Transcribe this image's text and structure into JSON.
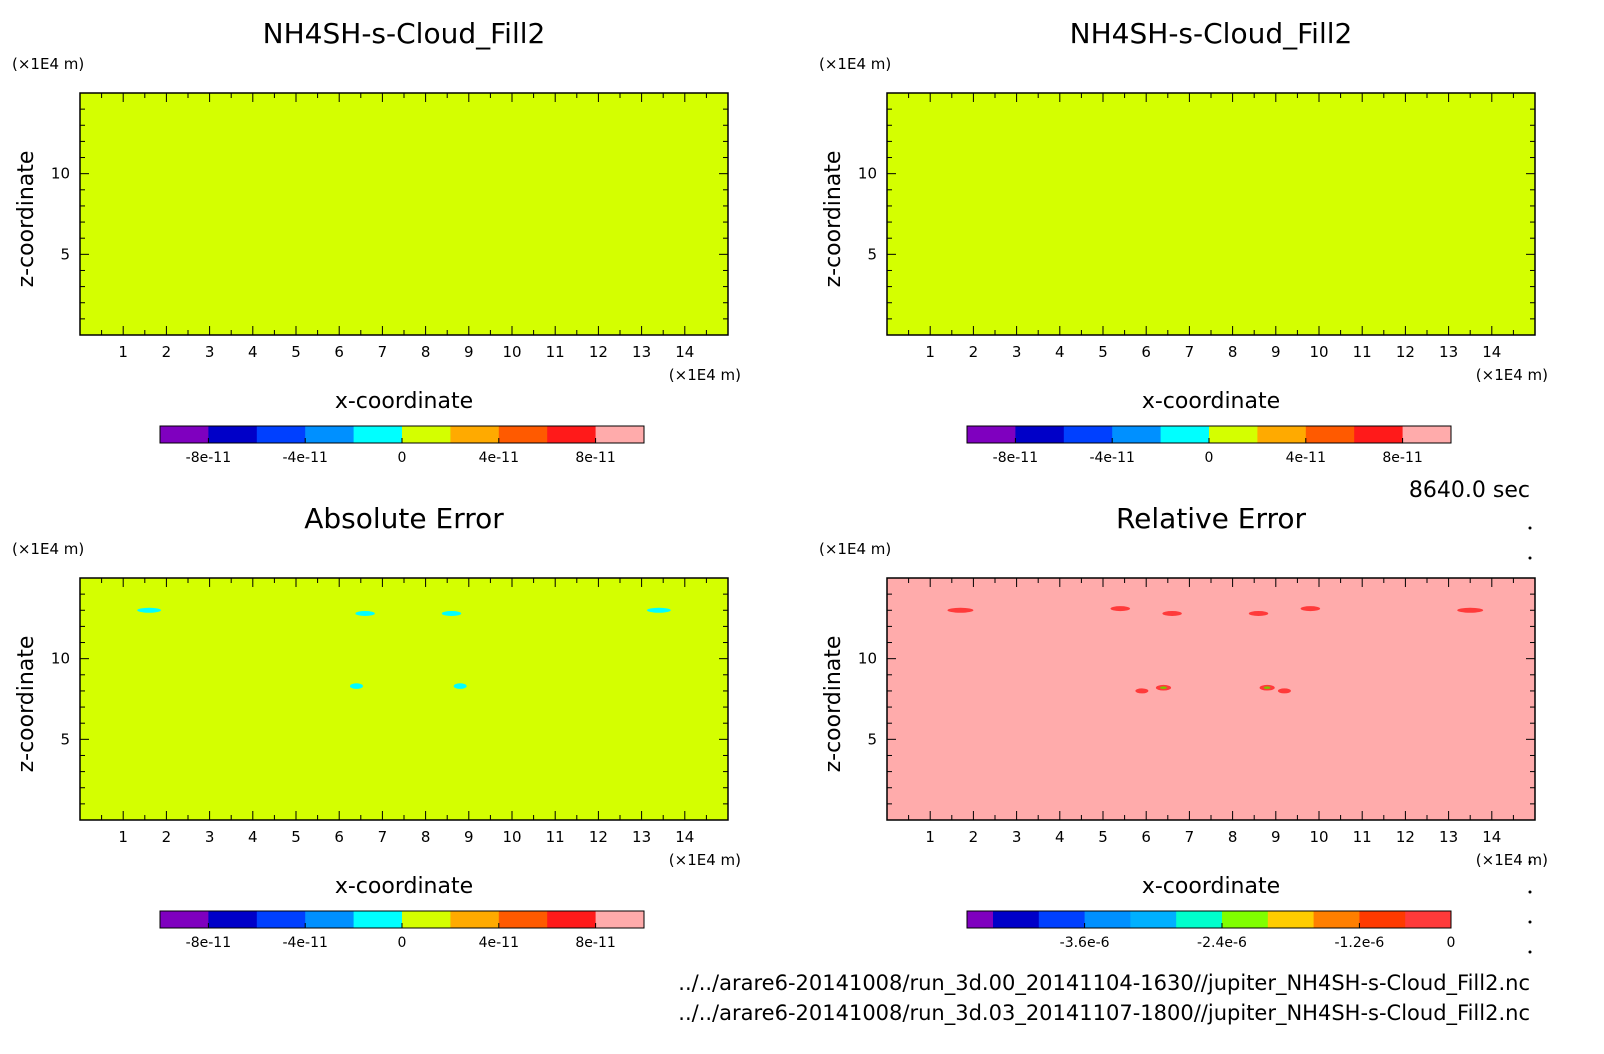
{
  "timestamp": "8640.0 sec",
  "source_files": [
    "../../arare6-20141008/run_3d.00_20141104-1630//jupiter_NH4SH-s-Cloud_Fill2.nc",
    "../../arare6-20141008/run_3d.03_20141107-1800//jupiter_NH4SH-s-Cloud_Fill2.nc"
  ],
  "colors": {
    "field_fill": "#d4ff00",
    "abs_error_feature": "#00ffff",
    "relative_background": "#ffabab",
    "relative_feature": "#ff3a3a"
  },
  "chart_data": [
    {
      "type": "heatmap",
      "title": "NH4SH-s-Cloud_Fill2",
      "xlabel": "x-coordinate",
      "ylabel": "z-coordinate",
      "x_unit": "(×1E4 m)",
      "y_unit": "(×1E4 m)",
      "xlim": [
        0,
        15
      ],
      "ylim": [
        0,
        15
      ],
      "x_ticks": [
        "1",
        "2",
        "3",
        "4",
        "5",
        "6",
        "7",
        "8",
        "9",
        "10",
        "11",
        "12",
        "13",
        "14"
      ],
      "y_ticks": [
        "5",
        "10"
      ],
      "field": "uniform 0",
      "colorbar": {
        "colors": [
          "#7f00bf",
          "#0000c8",
          "#0040ff",
          "#0090ff",
          "#00ffff",
          "#d4ff00",
          "#ffaa00",
          "#ff5a00",
          "#ff1a1a",
          "#ffabab"
        ],
        "tick_labels": [
          "-8e-11",
          "-4e-11",
          "0",
          "4e-11",
          "8e-11"
        ]
      }
    },
    {
      "type": "heatmap",
      "title": "NH4SH-s-Cloud_Fill2",
      "xlabel": "x-coordinate",
      "ylabel": "z-coordinate",
      "x_unit": "(×1E4 m)",
      "y_unit": "(×1E4 m)",
      "xlim": [
        0,
        15
      ],
      "ylim": [
        0,
        15
      ],
      "x_ticks": [
        "1",
        "2",
        "3",
        "4",
        "5",
        "6",
        "7",
        "8",
        "9",
        "10",
        "11",
        "12",
        "13",
        "14"
      ],
      "y_ticks": [
        "5",
        "10"
      ],
      "field": "uniform 0",
      "colorbar": {
        "colors": [
          "#7f00bf",
          "#0000c8",
          "#0040ff",
          "#0090ff",
          "#00ffff",
          "#d4ff00",
          "#ffaa00",
          "#ff5a00",
          "#ff1a1a",
          "#ffabab"
        ],
        "tick_labels": [
          "-8e-11",
          "-4e-11",
          "0",
          "4e-11",
          "8e-11"
        ]
      }
    },
    {
      "type": "heatmap",
      "title": "Absolute Error",
      "xlabel": "x-coordinate",
      "ylabel": "z-coordinate",
      "x_unit": "(×1E4 m)",
      "y_unit": "(×1E4 m)",
      "xlim": [
        0,
        15
      ],
      "ylim": [
        0,
        15
      ],
      "x_ticks": [
        "1",
        "2",
        "3",
        "4",
        "5",
        "6",
        "7",
        "8",
        "9",
        "10",
        "11",
        "12",
        "13",
        "14"
      ],
      "y_ticks": [
        "5",
        "10"
      ],
      "features": [
        {
          "x": 1.6,
          "z": 13.0,
          "w": 0.55,
          "h": 0.25
        },
        {
          "x": 6.6,
          "z": 12.8,
          "w": 0.45,
          "h": 0.3
        },
        {
          "x": 8.6,
          "z": 12.8,
          "w": 0.45,
          "h": 0.3
        },
        {
          "x": 13.4,
          "z": 13.0,
          "w": 0.55,
          "h": 0.25
        },
        {
          "x": 6.4,
          "z": 8.3,
          "w": 0.3,
          "h": 0.35
        },
        {
          "x": 8.8,
          "z": 8.3,
          "w": 0.3,
          "h": 0.35
        }
      ],
      "colorbar": {
        "colors": [
          "#7f00bf",
          "#0000c8",
          "#0040ff",
          "#0090ff",
          "#00ffff",
          "#d4ff00",
          "#ffaa00",
          "#ff5a00",
          "#ff1a1a",
          "#ffabab"
        ],
        "tick_labels": [
          "-8e-11",
          "-4e-11",
          "0",
          "4e-11",
          "8e-11"
        ]
      }
    },
    {
      "type": "heatmap",
      "title": "Relative Error",
      "xlabel": "x-coordinate",
      "ylabel": "z-coordinate",
      "x_unit": "(×1E4 m)",
      "y_unit": "(×1E4 m)",
      "xlim": [
        0,
        15
      ],
      "ylim": [
        0,
        15
      ],
      "x_ticks": [
        "1",
        "2",
        "3",
        "4",
        "5",
        "6",
        "7",
        "8",
        "9",
        "10",
        "11",
        "12",
        "13",
        "14"
      ],
      "y_ticks": [
        "5",
        "10"
      ],
      "features": [
        {
          "x": 1.7,
          "z": 13.0,
          "w": 0.6,
          "h": 0.25
        },
        {
          "x": 5.4,
          "z": 13.1,
          "w": 0.45,
          "h": 0.25
        },
        {
          "x": 6.6,
          "z": 12.8,
          "w": 0.45,
          "h": 0.3
        },
        {
          "x": 8.6,
          "z": 12.8,
          "w": 0.45,
          "h": 0.3
        },
        {
          "x": 9.8,
          "z": 13.1,
          "w": 0.45,
          "h": 0.25
        },
        {
          "x": 13.5,
          "z": 13.0,
          "w": 0.6,
          "h": 0.25
        },
        {
          "x": 5.9,
          "z": 8.0,
          "w": 0.3,
          "h": 0.2
        },
        {
          "x": 6.4,
          "z": 8.2,
          "w": 0.35,
          "h": 0.35
        },
        {
          "x": 8.8,
          "z": 8.2,
          "w": 0.35,
          "h": 0.35
        },
        {
          "x": 9.2,
          "z": 8.0,
          "w": 0.3,
          "h": 0.2
        }
      ],
      "colorbar": {
        "colors": [
          "#7f00bf",
          "#0000c8",
          "#0040ff",
          "#0090ff",
          "#00b0ff",
          "#00ffcc",
          "#80ff00",
          "#ffcc00",
          "#ff7f00",
          "#ff3a00",
          "#ff3a3a"
        ],
        "tick_labels": [
          "-3.6e-6",
          "-2.4e-6",
          "-1.2e-6",
          "0"
        ]
      }
    }
  ]
}
